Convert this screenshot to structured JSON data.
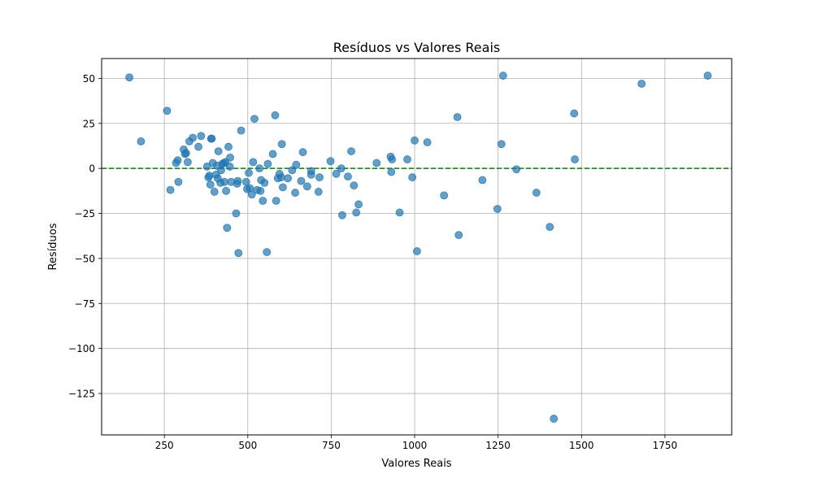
{
  "chart_data": {
    "type": "scatter",
    "title": "Resíduos vs Valores Reais",
    "xlabel": "Valores Reais",
    "ylabel": "Resíduos",
    "xlim": [
      62,
      1950
    ],
    "ylim": [
      -148,
      61
    ],
    "xticks": [
      250,
      500,
      750,
      1000,
      1250,
      1500,
      1750
    ],
    "yticks": [
      50,
      25,
      0,
      -25,
      -50,
      -75,
      -100,
      -125
    ],
    "xtick_labels": [
      "250",
      "500",
      "750",
      "1000",
      "1250",
      "1500",
      "1750"
    ],
    "ytick_labels": [
      "50",
      "25",
      "0",
      "−25",
      "−50",
      "−75",
      "−100",
      "−125"
    ],
    "grid": true,
    "reference_line": {
      "y": 0,
      "color": "#008000",
      "style": "dashed"
    },
    "marker_color": "#1f77b4",
    "points": [
      [
        145,
        50.5
      ],
      [
        180,
        15
      ],
      [
        258,
        32
      ],
      [
        268,
        -12
      ],
      [
        285,
        3
      ],
      [
        290,
        4.5
      ],
      [
        292,
        -7.5
      ],
      [
        308,
        10.5
      ],
      [
        312,
        8
      ],
      [
        315,
        8.5
      ],
      [
        320,
        3.5
      ],
      [
        325,
        15
      ],
      [
        335,
        17
      ],
      [
        352,
        12
      ],
      [
        360,
        18
      ],
      [
        378,
        1
      ],
      [
        382,
        -5
      ],
      [
        385,
        -4
      ],
      [
        388,
        -9
      ],
      [
        390,
        16.5
      ],
      [
        392,
        16.5
      ],
      [
        395,
        3
      ],
      [
        400,
        -13
      ],
      [
        405,
        -3.5
      ],
      [
        408,
        1.5
      ],
      [
        410,
        -5.5
      ],
      [
        412,
        9.5
      ],
      [
        418,
        -8
      ],
      [
        420,
        -1
      ],
      [
        424,
        2.5
      ],
      [
        428,
        3
      ],
      [
        430,
        -7.5
      ],
      [
        433,
        3.5
      ],
      [
        435,
        -12.5
      ],
      [
        438,
        -33
      ],
      [
        442,
        12
      ],
      [
        446,
        1
      ],
      [
        447,
        6
      ],
      [
        450,
        -7.5
      ],
      [
        465,
        -25
      ],
      [
        468,
        -8.5
      ],
      [
        470,
        -7
      ],
      [
        472,
        -47
      ],
      [
        480,
        21
      ],
      [
        495,
        -7.5
      ],
      [
        498,
        -11.5
      ],
      [
        503,
        -2.5
      ],
      [
        506,
        -11
      ],
      [
        512,
        -14.5
      ],
      [
        516,
        3.5
      ],
      [
        520,
        27.5
      ],
      [
        528,
        -12
      ],
      [
        535,
        0
      ],
      [
        538,
        -12.5
      ],
      [
        540,
        -6.5
      ],
      [
        545,
        -18
      ],
      [
        550,
        -8
      ],
      [
        557,
        -46.5
      ],
      [
        560,
        2.5
      ],
      [
        575,
        8
      ],
      [
        582,
        29.5
      ],
      [
        585,
        -18
      ],
      [
        590,
        -5.5
      ],
      [
        595,
        -3
      ],
      [
        600,
        -5
      ],
      [
        602,
        13.5
      ],
      [
        605,
        -10.5
      ],
      [
        620,
        -5.5
      ],
      [
        633,
        -1
      ],
      [
        642,
        -13.5
      ],
      [
        645,
        2
      ],
      [
        660,
        -7
      ],
      [
        665,
        9
      ],
      [
        678,
        -10
      ],
      [
        690,
        -3.5
      ],
      [
        690,
        -1.5
      ],
      [
        712,
        -13
      ],
      [
        715,
        -5
      ],
      [
        748,
        4
      ],
      [
        765,
        -3
      ],
      [
        780,
        0
      ],
      [
        783,
        -26
      ],
      [
        800,
        -4.5
      ],
      [
        810,
        9.5
      ],
      [
        818,
        -9.5
      ],
      [
        825,
        -24.5
      ],
      [
        832,
        -20
      ],
      [
        886,
        3
      ],
      [
        928,
        6.5
      ],
      [
        930,
        -2
      ],
      [
        932,
        5
      ],
      [
        955,
        -24.5
      ],
      [
        978,
        5
      ],
      [
        993,
        -5
      ],
      [
        1000,
        15.5
      ],
      [
        1007,
        -46
      ],
      [
        1038,
        14.5
      ],
      [
        1088,
        -15
      ],
      [
        1128,
        28.5
      ],
      [
        1132,
        -37
      ],
      [
        1203,
        -6.5
      ],
      [
        1248,
        -22.5
      ],
      [
        1260,
        13.5
      ],
      [
        1265,
        51.5
      ],
      [
        1305,
        -0.5
      ],
      [
        1365,
        -13.5
      ],
      [
        1405,
        -32.5
      ],
      [
        1417,
        -139
      ],
      [
        1478,
        30.5
      ],
      [
        1480,
        5
      ],
      [
        1680,
        47
      ],
      [
        1878,
        51.5
      ]
    ]
  }
}
